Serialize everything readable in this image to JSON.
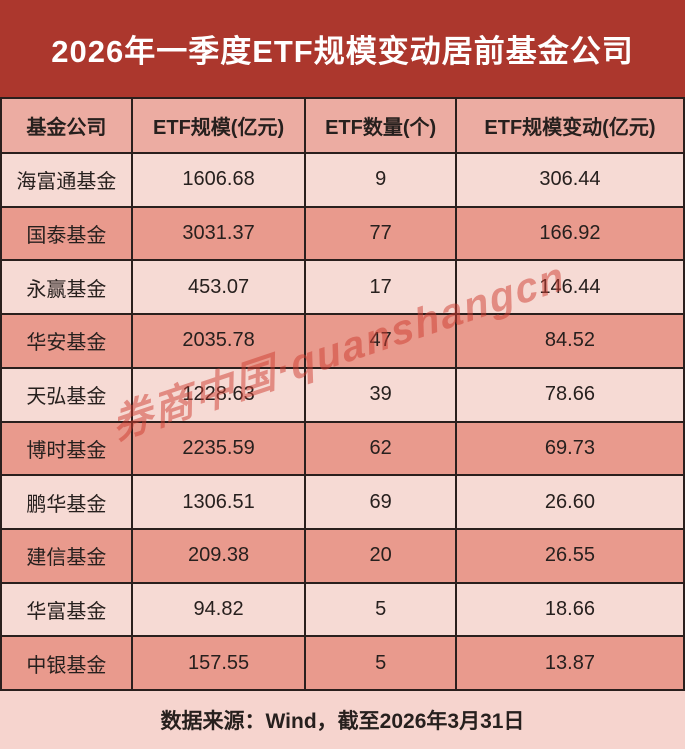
{
  "banner": {
    "title": "2026年一季度ETF规模变动居前基金公司"
  },
  "table": {
    "headers": [
      "基金公司",
      "ETF规模(亿元)",
      "ETF数量(个)",
      "ETF规模变动(亿元)"
    ],
    "rows": [
      {
        "company": "海富通基金",
        "scale": "1606.68",
        "count": "9",
        "change": "306.44"
      },
      {
        "company": "国泰基金",
        "scale": "3031.37",
        "count": "77",
        "change": "166.92"
      },
      {
        "company": "永赢基金",
        "scale": "453.07",
        "count": "17",
        "change": "146.44"
      },
      {
        "company": "华安基金",
        "scale": "2035.78",
        "count": "47",
        "change": "84.52"
      },
      {
        "company": "天弘基金",
        "scale": "1228.63",
        "count": "39",
        "change": "78.66"
      },
      {
        "company": "博时基金",
        "scale": "2235.59",
        "count": "62",
        "change": "69.73"
      },
      {
        "company": "鹏华基金",
        "scale": "1306.51",
        "count": "69",
        "change": "26.60"
      },
      {
        "company": "建信基金",
        "scale": "209.38",
        "count": "20",
        "change": "26.55"
      },
      {
        "company": "华富基金",
        "scale": "94.82",
        "count": "5",
        "change": "18.66"
      },
      {
        "company": "中银基金",
        "scale": "157.55",
        "count": "5",
        "change": "13.87"
      }
    ]
  },
  "footer": {
    "text": "数据来源：Wind，截至2026年3月31日"
  },
  "watermark": {
    "text": "券商中国·quanshangcn"
  },
  "colors": {
    "banner_bg": "#AC372D",
    "header_row_bg": "#ECACA2",
    "odd_row_bg": "#F6DAD4",
    "even_row_bg": "#E99A8D",
    "footer_bg": "#F6D4CE",
    "grid_line": "#2A1F1D",
    "title_text": "#FFFFFF",
    "cell_text": "#27201E",
    "watermark_text": "rgba(206,60,48,0.5)"
  },
  "chart_data": {
    "type": "table",
    "title": "2026年一季度ETF规模变动居前基金公司",
    "columns": [
      "基金公司",
      "ETF规模(亿元)",
      "ETF数量(个)",
      "ETF规模变动(亿元)"
    ],
    "rows": [
      [
        "海富通基金",
        1606.68,
        9,
        306.44
      ],
      [
        "国泰基金",
        3031.37,
        77,
        166.92
      ],
      [
        "永赢基金",
        453.07,
        17,
        146.44
      ],
      [
        "华安基金",
        2035.78,
        47,
        84.52
      ],
      [
        "天弘基金",
        1228.63,
        39,
        78.66
      ],
      [
        "博时基金",
        2235.59,
        62,
        69.73
      ],
      [
        "鹏华基金",
        1306.51,
        69,
        26.6
      ],
      [
        "建信基金",
        209.38,
        20,
        26.55
      ],
      [
        "华富基金",
        94.82,
        5,
        18.66
      ],
      [
        "中银基金",
        157.55,
        5,
        13.87
      ]
    ],
    "source_note": "数据来源：Wind，截至2026年3月31日"
  }
}
